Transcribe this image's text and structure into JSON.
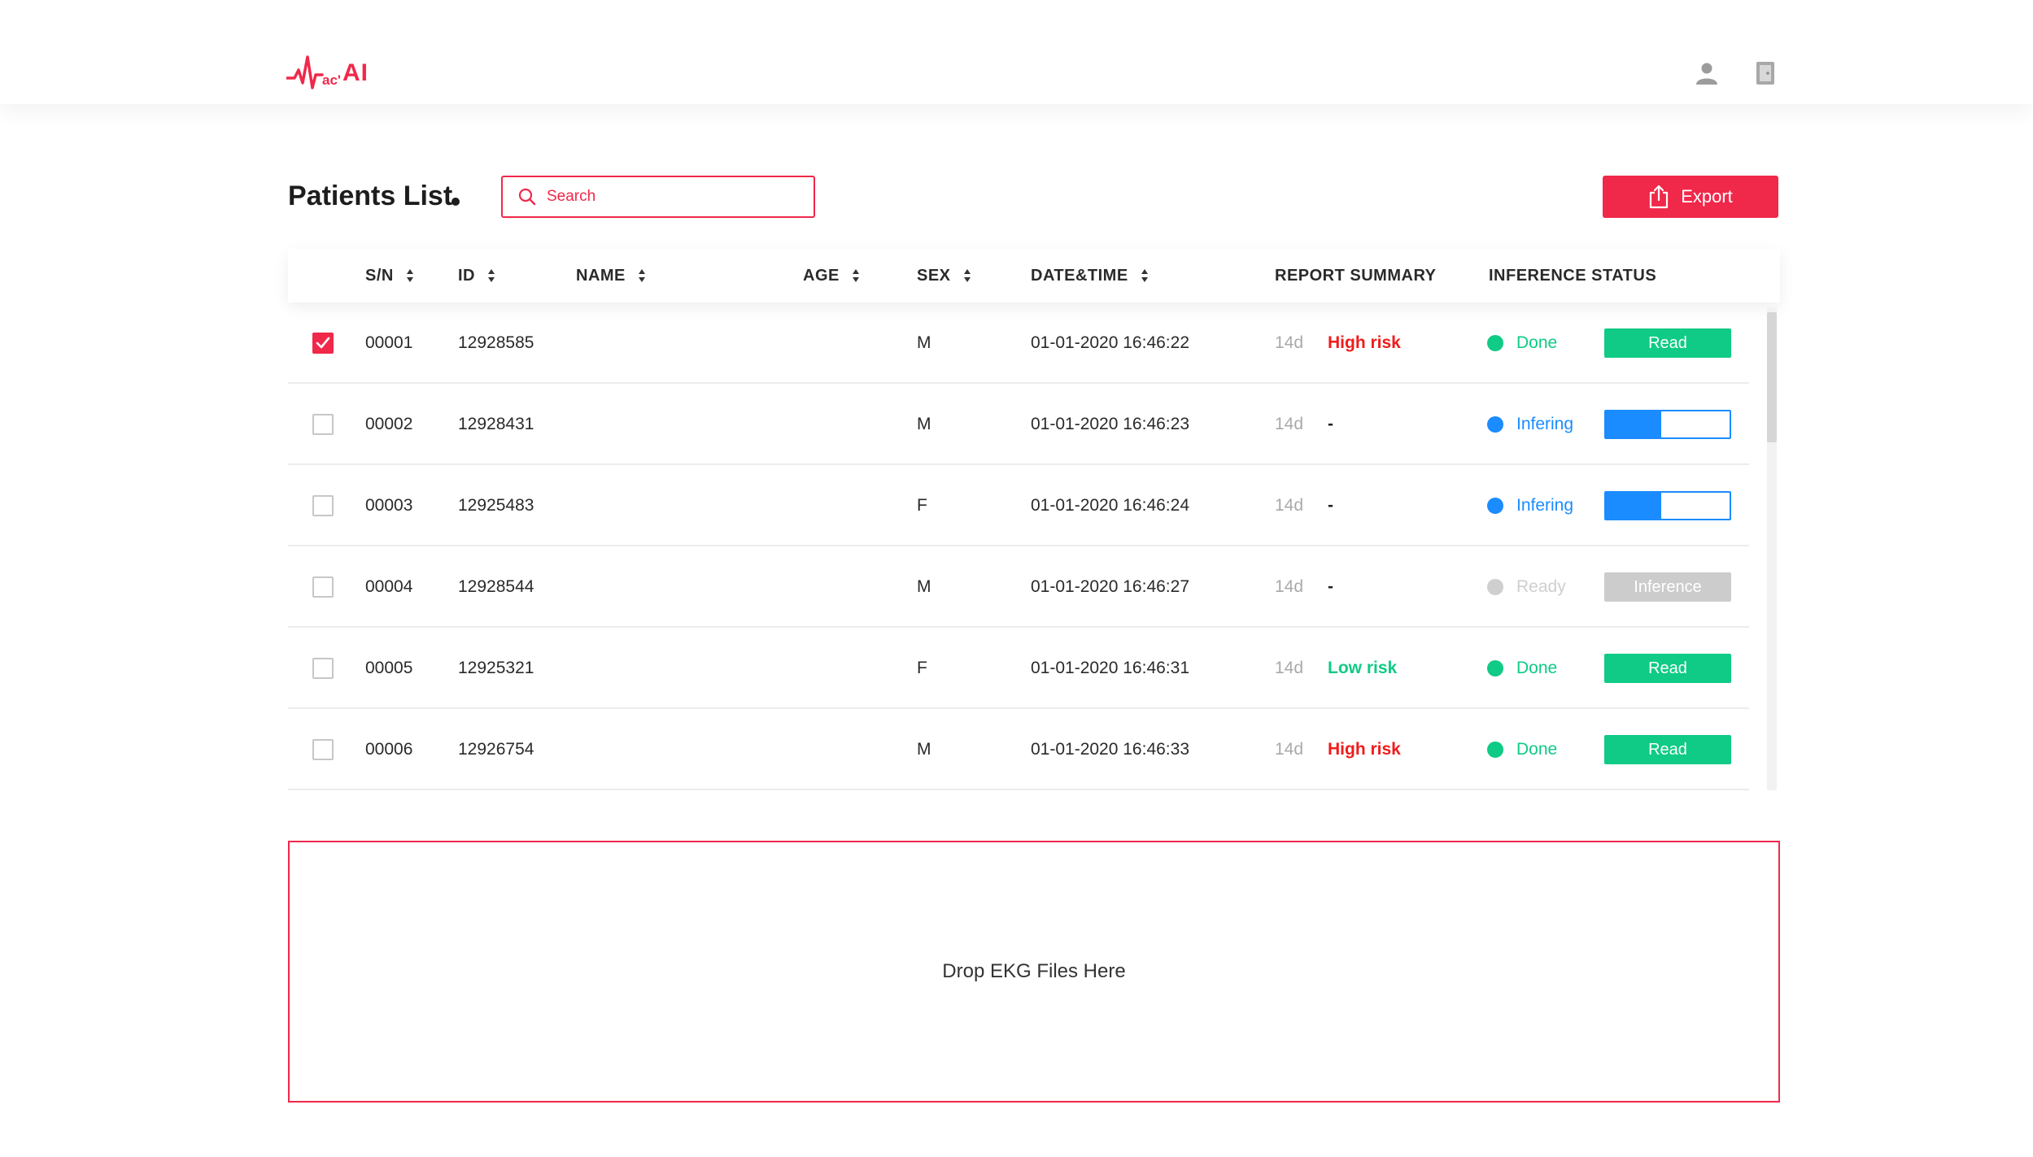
{
  "header": {
    "logo_small": "ac'",
    "logo_text": "AI",
    "icons": [
      "user-icon",
      "logout-icon"
    ]
  },
  "page": {
    "title": "Patients List"
  },
  "search": {
    "placeholder": "Search",
    "value": ""
  },
  "export": {
    "label": "Export"
  },
  "table": {
    "columns": [
      "S/N",
      "ID",
      "NAME",
      "AGE",
      "SEX",
      "DATE&TIME",
      "REPORT SUMMARY",
      "INFERENCE STATUS"
    ],
    "rows": [
      {
        "checked": true,
        "sn": "00001",
        "id": "12928585",
        "name": "",
        "age": "",
        "sex": "M",
        "datetime": "01-01-2020 16:46:22",
        "days": "14d",
        "summary": "High risk",
        "summary_color": "#f01c1c",
        "status": "Done",
        "status_color": "#0fcb85",
        "action": "button",
        "action_label": "Read",
        "action_color": "#0fcb85"
      },
      {
        "checked": false,
        "sn": "00002",
        "id": "12928431",
        "name": "",
        "age": "",
        "sex": "M",
        "datetime": "01-01-2020 16:46:23",
        "days": "14d",
        "summary": "-",
        "summary_color": "#222222",
        "status": "Infering",
        "status_color": "#1a8cff",
        "action": "progress",
        "progress": 0.45
      },
      {
        "checked": false,
        "sn": "00003",
        "id": "12925483",
        "name": "",
        "age": "",
        "sex": "F",
        "datetime": "01-01-2020 16:46:24",
        "days": "14d",
        "summary": "-",
        "summary_color": "#222222",
        "status": "Infering",
        "status_color": "#1a8cff",
        "action": "progress",
        "progress": 0.45
      },
      {
        "checked": false,
        "sn": "00004",
        "id": "12928544",
        "name": "",
        "age": "",
        "sex": "M",
        "datetime": "01-01-2020 16:46:27",
        "days": "14d",
        "summary": "-",
        "summary_color": "#222222",
        "status": "Ready",
        "status_color": "#cfcfcf",
        "action": "button",
        "action_label": "Inference",
        "action_color": "#cccccc"
      },
      {
        "checked": false,
        "sn": "00005",
        "id": "12925321",
        "name": "",
        "age": "",
        "sex": "F",
        "datetime": "01-01-2020 16:46:31",
        "days": "14d",
        "summary": "Low risk",
        "summary_color": "#0fcb85",
        "status": "Done",
        "status_color": "#0fcb85",
        "action": "button",
        "action_label": "Read",
        "action_color": "#0fcb85"
      },
      {
        "checked": false,
        "sn": "00006",
        "id": "12926754",
        "name": "",
        "age": "",
        "sex": "M",
        "datetime": "01-01-2020 16:46:33",
        "days": "14d",
        "summary": "High risk",
        "summary_color": "#f01c1c",
        "status": "Done",
        "status_color": "#0fcb85",
        "action": "button",
        "action_label": "Read",
        "action_color": "#0fcb85"
      }
    ]
  },
  "dropzone": {
    "label": "Drop EKG Files Here"
  },
  "colors": {
    "accent": "#f0284a",
    "success": "#0fcb85",
    "info": "#1a8cff",
    "muted": "#cccccc"
  }
}
